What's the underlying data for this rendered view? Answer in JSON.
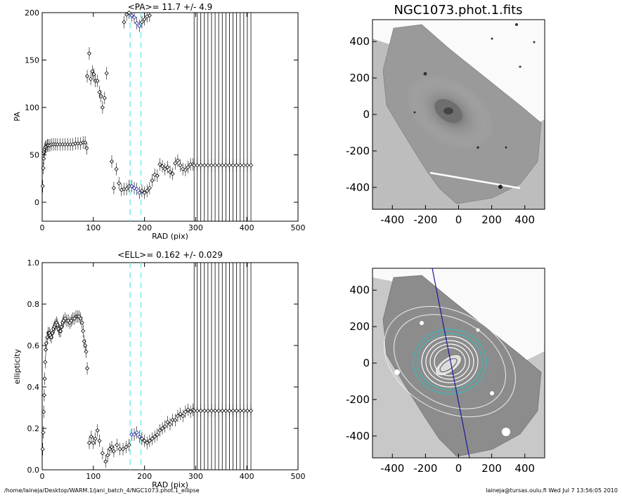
{
  "footer": {
    "path": "/home/laineja/Desktop/WARM.1/jani_batch_4/NGC1073.phot.1_ellipse",
    "stamp": "laineja@tursas.oulu.fi  Wed Jul  7 13:56:05 2010"
  },
  "colors": {
    "accent_cyan": "#7ee8e8",
    "accent_blue": "#1a1aa0",
    "axis": "#000000"
  },
  "chart_data": [
    {
      "type": "scatter",
      "id": "pa",
      "title": "<PA>=  11.7 +/-   4.9",
      "xlabel": "RAD (pix)",
      "ylabel": "PA",
      "xlim": [
        0,
        500
      ],
      "ylim": [
        -20,
        200
      ],
      "xticks": [
        "0",
        "100",
        "200",
        "300",
        "400",
        "500"
      ],
      "yticks": [
        "0",
        "50",
        "100",
        "150",
        "200"
      ],
      "vlines_dashed": [
        172,
        193
      ],
      "vlines_solid": [
        297,
        303,
        310,
        317,
        324,
        331,
        338,
        345,
        352,
        359,
        366,
        373,
        380,
        387,
        394,
        401,
        408
      ],
      "series": [
        {
          "x": [
            1,
            2,
            3,
            4,
            5,
            6,
            8,
            10,
            12,
            15,
            18,
            22,
            26,
            30,
            35,
            40,
            45,
            50,
            55,
            60,
            65,
            70,
            75,
            80,
            84,
            87
          ],
          "y": [
            17,
            36,
            46,
            53,
            56,
            58,
            59,
            60,
            60,
            60,
            61,
            61,
            61,
            61,
            61,
            61,
            61,
            61,
            61,
            61,
            62,
            62,
            62,
            63,
            63,
            57
          ]
        },
        {
          "x": [
            88,
            92,
            95,
            98,
            101,
            104,
            108,
            112,
            115,
            118,
            122,
            126
          ],
          "y": [
            133,
            157,
            130,
            138,
            135,
            128,
            128,
            116,
            112,
            100,
            110,
            136
          ]
        },
        {
          "x": [
            136,
            140,
            145,
            150,
            155,
            160,
            165,
            170,
            175,
            180,
            185,
            190,
            195,
            200,
            205,
            210
          ],
          "y": [
            43,
            15,
            35,
            20,
            13,
            14,
            14,
            17,
            17,
            15,
            14,
            10,
            12,
            10,
            12,
            15
          ]
        },
        {
          "x": [
            215,
            220,
            225,
            230,
            235,
            240,
            245,
            250,
            255,
            260,
            265,
            270,
            275,
            280,
            285,
            290,
            295
          ],
          "y": [
            23,
            29,
            28,
            40,
            38,
            35,
            37,
            32,
            30,
            41,
            44,
            39,
            35,
            34,
            37,
            40,
            40
          ]
        },
        {
          "x": [
            160,
            165,
            170,
            175,
            180,
            185,
            190,
            195,
            200,
            205,
            210
          ],
          "y": [
            190,
            198,
            200,
            197,
            195,
            189,
            186,
            190,
            193,
            196,
            197
          ]
        },
        {
          "x": [
            297,
            303,
            310,
            317,
            324,
            331,
            338,
            345,
            352,
            359,
            366,
            373,
            380,
            387,
            394,
            401,
            408
          ],
          "y": [
            39,
            39,
            39,
            39,
            39,
            39,
            39,
            39,
            39,
            39,
            39,
            39,
            39,
            39,
            39,
            39,
            39
          ]
        }
      ]
    },
    {
      "type": "image",
      "id": "img1",
      "title": "NGC1073.phot.1.fits",
      "xlim": [
        -520,
        520
      ],
      "ylim": [
        -520,
        520
      ],
      "xticks": [
        "-400",
        "-200",
        "0",
        "200",
        "400"
      ],
      "yticks": [
        "400",
        "200",
        "0",
        "-200",
        "-400"
      ]
    },
    {
      "type": "scatter",
      "id": "ell",
      "title": "<ELL>= 0.162 +/-  0.029",
      "xlabel": "RAD (pix)",
      "ylabel": "ellipticity",
      "xlim": [
        0,
        500
      ],
      "ylim": [
        0.0,
        1.0
      ],
      "xticks": [
        "0",
        "100",
        "200",
        "300",
        "400",
        "500"
      ],
      "yticks": [
        "0.0",
        "0.2",
        "0.4",
        "0.6",
        "0.8",
        "1.0"
      ],
      "vlines_dashed": [
        172,
        193
      ],
      "vlines_solid": [
        297,
        303,
        310,
        317,
        324,
        331,
        338,
        345,
        352,
        359,
        366,
        373,
        380,
        387,
        394,
        401,
        408
      ],
      "series": [
        {
          "x": [
            1,
            2,
            3,
            4,
            5,
            6,
            7,
            8,
            10,
            12,
            14,
            16,
            18,
            20,
            22,
            24,
            26,
            28,
            30,
            32,
            34,
            36,
            38,
            40,
            42,
            45,
            48,
            51,
            54,
            57,
            60,
            63,
            66,
            69,
            72,
            75,
            78,
            80,
            82,
            84,
            86,
            88
          ],
          "y": [
            0.1,
            0.18,
            0.28,
            0.36,
            0.44,
            0.52,
            0.58,
            0.61,
            0.64,
            0.66,
            0.66,
            0.65,
            0.64,
            0.66,
            0.68,
            0.69,
            0.7,
            0.71,
            0.7,
            0.68,
            0.67,
            0.67,
            0.69,
            0.71,
            0.72,
            0.73,
            0.72,
            0.72,
            0.71,
            0.72,
            0.73,
            0.73,
            0.74,
            0.74,
            0.74,
            0.73,
            0.71,
            0.67,
            0.62,
            0.6,
            0.57,
            0.49
          ]
        },
        {
          "x": [
            92,
            96,
            100,
            104,
            108,
            112,
            118,
            124,
            128,
            132,
            136,
            140,
            146,
            152,
            158,
            164,
            170,
            175,
            180,
            185,
            190,
            195,
            200
          ],
          "y": [
            0.13,
            0.16,
            0.13,
            0.15,
            0.19,
            0.14,
            0.08,
            0.04,
            0.07,
            0.1,
            0.11,
            0.09,
            0.12,
            0.1,
            0.1,
            0.11,
            0.12,
            0.17,
            0.17,
            0.18,
            0.16,
            0.15,
            0.14
          ]
        },
        {
          "x": [
            205,
            210,
            215,
            220,
            225,
            230,
            235,
            240,
            245,
            250,
            255,
            260,
            265,
            270,
            275,
            280,
            285,
            290,
            295
          ],
          "y": [
            0.13,
            0.14,
            0.15,
            0.16,
            0.17,
            0.19,
            0.2,
            0.21,
            0.23,
            0.22,
            0.24,
            0.24,
            0.26,
            0.27,
            0.26,
            0.28,
            0.29,
            0.28,
            0.29
          ]
        },
        {
          "x": [
            297,
            303,
            310,
            317,
            324,
            331,
            338,
            345,
            352,
            359,
            366,
            373,
            380,
            387,
            394,
            401,
            408
          ],
          "y": [
            0.285,
            0.285,
            0.285,
            0.285,
            0.285,
            0.285,
            0.285,
            0.285,
            0.285,
            0.285,
            0.285,
            0.285,
            0.285,
            0.285,
            0.285,
            0.285,
            0.285
          ]
        }
      ]
    },
    {
      "type": "image",
      "id": "img2",
      "title": "",
      "xlim": [
        -520,
        520
      ],
      "ylim": [
        -520,
        520
      ],
      "xticks": [
        "-400",
        "-200",
        "0",
        "200",
        "400"
      ],
      "yticks": [
        "400",
        "200",
        "0",
        "-200",
        "-400"
      ]
    }
  ]
}
